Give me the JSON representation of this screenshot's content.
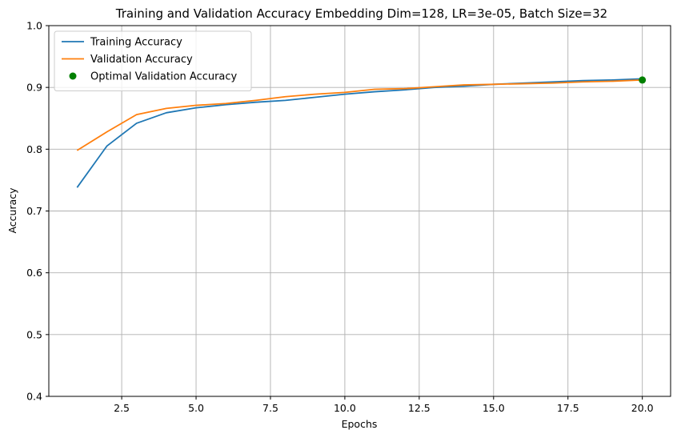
{
  "chart_data": {
    "type": "line",
    "title": "Training and Validation Accuracy Embedding Dim=128, LR=3e-05, Batch Size=32",
    "xlabel": "Epochs",
    "ylabel": "Accuracy",
    "xlim": [
      0.05,
      20.95
    ],
    "ylim": [
      0.4,
      1.0
    ],
    "xticks": [
      2.5,
      5.0,
      7.5,
      10.0,
      12.5,
      15.0,
      17.5,
      20.0
    ],
    "xtick_labels": [
      "2.5",
      "5.0",
      "7.5",
      "10.0",
      "12.5",
      "15.0",
      "17.5",
      "20.0"
    ],
    "yticks": [
      0.4,
      0.5,
      0.6,
      0.7,
      0.8,
      0.9,
      1.0
    ],
    "ytick_labels": [
      "0.4",
      "0.5",
      "0.6",
      "0.7",
      "0.8",
      "0.9",
      "1.0"
    ],
    "grid": true,
    "legend_position": "top-left",
    "x": [
      1,
      2,
      3,
      4,
      5,
      6,
      7,
      8,
      9,
      10,
      11,
      12,
      13,
      14,
      15,
      16,
      17,
      18,
      19,
      20
    ],
    "series": [
      {
        "name": "Training Accuracy",
        "color": "#1f77b4",
        "values": [
          0.738,
          0.805,
          0.842,
          0.859,
          0.867,
          0.872,
          0.876,
          0.879,
          0.884,
          0.889,
          0.893,
          0.896,
          0.9,
          0.902,
          0.905,
          0.907,
          0.909,
          0.911,
          0.912,
          0.914
        ]
      },
      {
        "name": "Validation Accuracy",
        "color": "#ff7f0e",
        "values": [
          0.798,
          0.828,
          0.856,
          0.866,
          0.871,
          0.874,
          0.879,
          0.885,
          0.889,
          0.892,
          0.897,
          0.898,
          0.901,
          0.904,
          0.905,
          0.906,
          0.907,
          0.909,
          0.91,
          0.912
        ]
      }
    ],
    "markers": [
      {
        "name": "Optimal Validation Accuracy",
        "color": "#008000",
        "x": 20,
        "y": 0.912
      }
    ]
  }
}
